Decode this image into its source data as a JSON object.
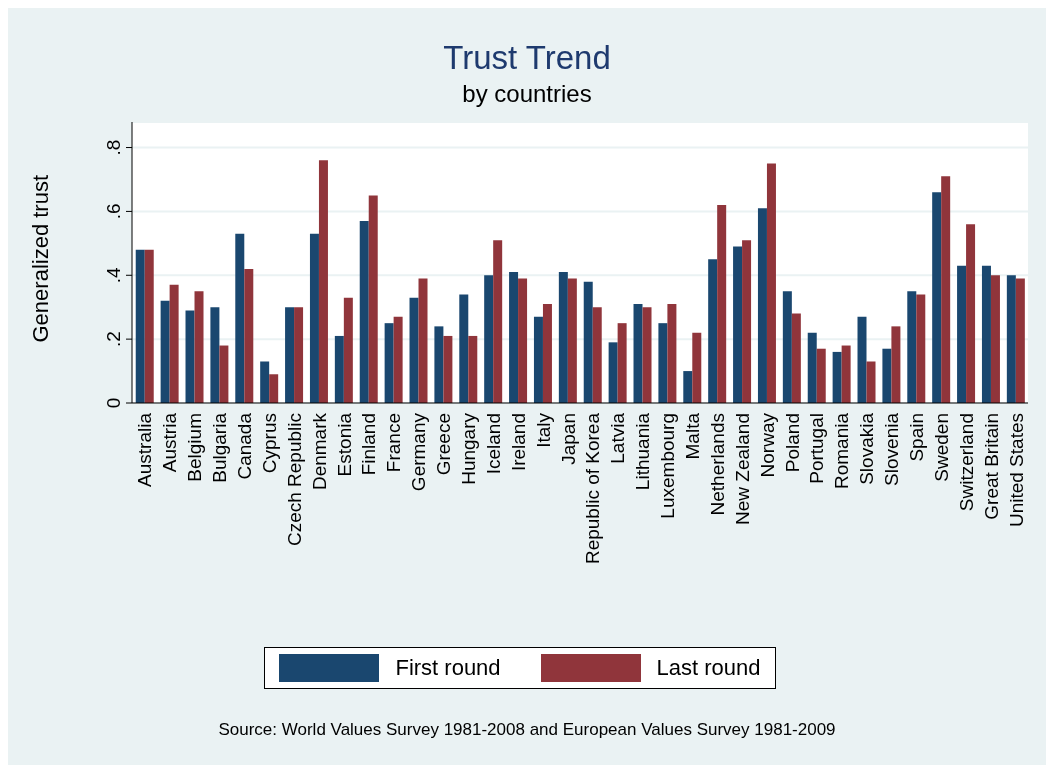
{
  "chart_data": {
    "type": "bar",
    "title": "Trust Trend",
    "subtitle": "by countries",
    "ylabel": "Generalized trust",
    "categories": [
      "Australia",
      "Austria",
      "Belgium",
      "Bulgaria",
      "Canada",
      "Cyprus",
      "Czech Republic",
      "Denmark",
      "Estonia",
      "Finland",
      "France",
      "Germany",
      "Greece",
      "Hungary",
      "Iceland",
      "Ireland",
      "Italy",
      "Japan",
      "Republic of Korea",
      "Latvia",
      "Lithuania",
      "Luxembourg",
      "Malta",
      "Netherlands",
      "New Zealand",
      "Norway",
      "Poland",
      "Portugal",
      "Romania",
      "Slovakia",
      "Slovenia",
      "Spain",
      "Sweden",
      "Switzerland",
      "Great Britain",
      "United States"
    ],
    "series": [
      {
        "name": "First round",
        "color": "#1a476f",
        "values": [
          0.48,
          0.32,
          0.29,
          0.3,
          0.53,
          0.13,
          0.3,
          0.53,
          0.21,
          0.57,
          0.25,
          0.33,
          0.24,
          0.34,
          0.4,
          0.41,
          0.27,
          0.41,
          0.38,
          0.19,
          0.31,
          0.25,
          0.1,
          0.45,
          0.49,
          0.61,
          0.35,
          0.22,
          0.16,
          0.27,
          0.17,
          0.35,
          0.66,
          0.43,
          0.43,
          0.4
        ]
      },
      {
        "name": "Last round",
        "color": "#90353b",
        "values": [
          0.48,
          0.37,
          0.35,
          0.18,
          0.42,
          0.09,
          0.3,
          0.76,
          0.33,
          0.65,
          0.27,
          0.39,
          0.21,
          0.21,
          0.51,
          0.39,
          0.31,
          0.39,
          0.3,
          0.25,
          0.3,
          0.31,
          0.22,
          0.62,
          0.51,
          0.75,
          0.28,
          0.17,
          0.18,
          0.13,
          0.24,
          0.34,
          0.71,
          0.56,
          0.4,
          0.39
        ]
      }
    ],
    "ylim": [
      0,
      0.88
    ],
    "yticks": [
      {
        "value": 0,
        "label": "0"
      },
      {
        "value": 0.2,
        "label": ".2"
      },
      {
        "value": 0.4,
        "label": ".4"
      },
      {
        "value": 0.6,
        "label": ".6"
      },
      {
        "value": 0.8,
        "label": ".8"
      }
    ],
    "grid": "y",
    "legend": "bottom",
    "annotations": [
      "Source: World Values Survey 1981-2008 and European Values Survey 1981-2009"
    ]
  }
}
